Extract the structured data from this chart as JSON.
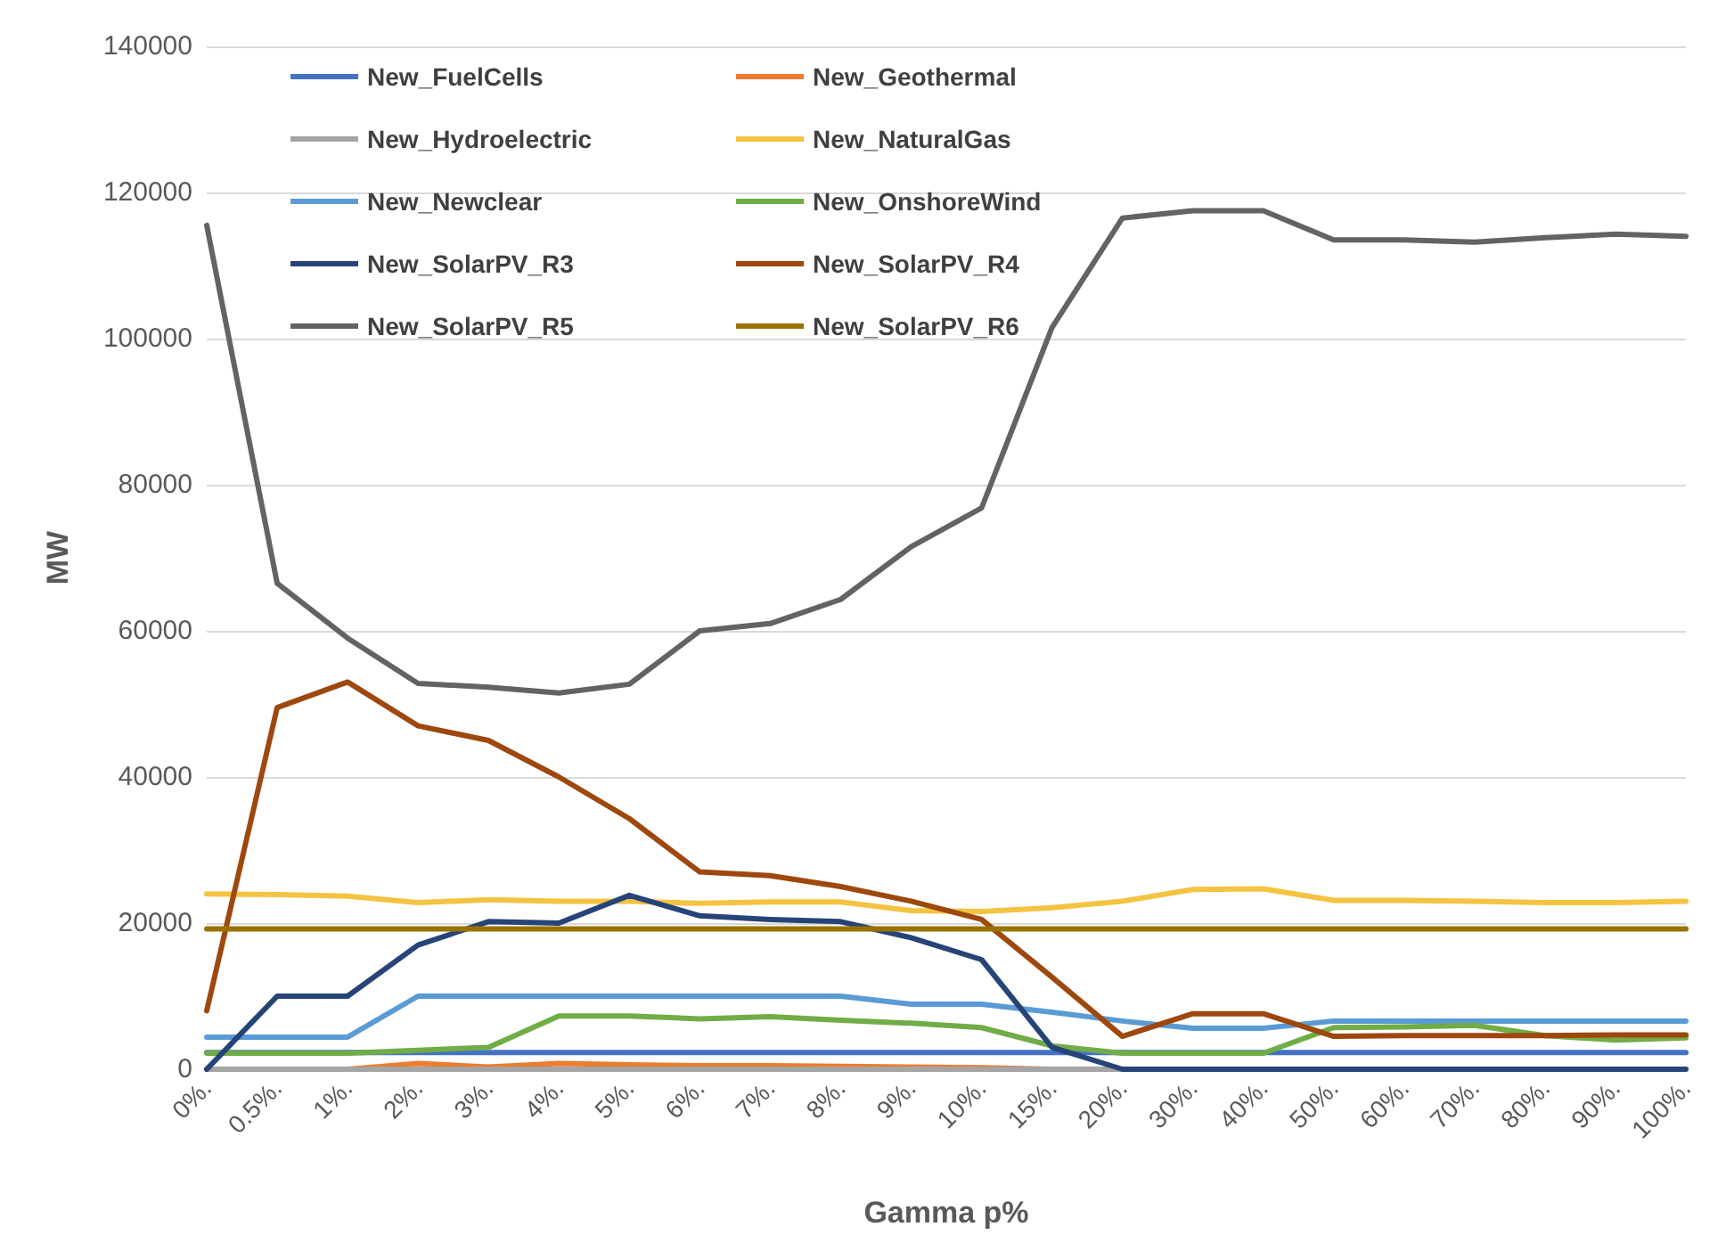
{
  "chart_data": {
    "type": "line",
    "xlabel": "Gamma p%",
    "ylabel": "MW",
    "categories": [
      "0%.",
      "0.5%.",
      "1%.",
      "2%.",
      "3%.",
      "4%.",
      "5%.",
      "6%.",
      "7%.",
      "8%.",
      "9%.",
      "10%.",
      "15%.",
      "20%.",
      "30%.",
      "40%.",
      "50%.",
      "60%.",
      "70%.",
      "80%.",
      "90%.",
      "100%."
    ],
    "series": [
      {
        "name": "New_FuelCells",
        "color": "#4472c4",
        "values": [
          2300,
          2300,
          2300,
          2300,
          2300,
          2300,
          2300,
          2300,
          2300,
          2300,
          2300,
          2300,
          2300,
          2300,
          2300,
          2300,
          2300,
          2300,
          2300,
          2300,
          2300,
          2300
        ]
      },
      {
        "name": "New_Geothermal",
        "color": "#ed7d31",
        "values": [
          0,
          0,
          0,
          800,
          300,
          800,
          600,
          500,
          500,
          400,
          300,
          200,
          0,
          0,
          null,
          null,
          null,
          null,
          null,
          null,
          null,
          null
        ]
      },
      {
        "name": "New_Hydroelectric",
        "color": "#a5a5a5",
        "values": [
          0,
          0,
          0,
          0,
          0,
          0,
          0,
          0,
          0,
          0,
          0,
          0,
          0,
          0,
          0,
          null,
          null,
          null,
          null,
          null,
          null,
          null
        ]
      },
      {
        "name": "New_NaturalGas",
        "color": "#f5c342",
        "values": [
          24000,
          23900,
          23700,
          22800,
          23200,
          23000,
          23000,
          22700,
          22900,
          22900,
          21700,
          21600,
          22100,
          23000,
          24600,
          24700,
          23100,
          23100,
          23000,
          22800,
          22800,
          23000
        ]
      },
      {
        "name": "New_Newclear",
        "color": "#5b9bd5",
        "values": [
          4400,
          4400,
          4400,
          10000,
          10000,
          10000,
          10000,
          10000,
          10000,
          10000,
          8900,
          8900,
          7800,
          6600,
          5600,
          5600,
          6600,
          6600,
          6600,
          6600,
          6600,
          6600
        ]
      },
      {
        "name": "New_OnshoreWind",
        "color": "#70ad47",
        "values": [
          2200,
          2200,
          2200,
          2600,
          3000,
          7300,
          7300,
          6900,
          7200,
          6700,
          6300,
          5700,
          3200,
          2200,
          2200,
          2200,
          5700,
          5800,
          6000,
          4600,
          4000,
          4300
        ]
      },
      {
        "name": "New_SolarPV_R3",
        "color": "#264478",
        "values": [
          0,
          10000,
          10000,
          17000,
          20200,
          20000,
          23800,
          21000,
          20500,
          20200,
          18000,
          15000,
          3000,
          0,
          0,
          0,
          0,
          0,
          0,
          0,
          0,
          0
        ]
      },
      {
        "name": "New_SolarPV_R4",
        "color": "#9e480e",
        "values": [
          8000,
          49500,
          53000,
          47000,
          45000,
          40000,
          34300,
          27000,
          26500,
          25000,
          23000,
          20500,
          12600,
          4500,
          7600,
          7600,
          4500,
          4600,
          4600,
          4600,
          4700,
          4700
        ]
      },
      {
        "name": "New_SolarPV_R5",
        "color": "#636363",
        "values": [
          115500,
          66500,
          59000,
          52800,
          52300,
          51500,
          52700,
          60000,
          61000,
          64300,
          71500,
          76800,
          101500,
          116500,
          117500,
          117500,
          113500,
          113500,
          113200,
          113800,
          114300,
          114000
        ]
      },
      {
        "name": "New_SolarPV_R6",
        "color": "#997300",
        "values": [
          19200,
          19200,
          19200,
          19200,
          19200,
          19200,
          19200,
          19200,
          19200,
          19200,
          19200,
          19200,
          19200,
          19200,
          19200,
          19200,
          19200,
          19200,
          19200,
          19200,
          19200,
          19200
        ]
      }
    ],
    "ylim": [
      0,
      140000
    ],
    "yticks": [
      0,
      20000,
      40000,
      60000,
      80000,
      100000,
      120000,
      140000
    ],
    "grid": "y",
    "legend": "top left",
    "marker": "none",
    "line_style": "solid"
  }
}
